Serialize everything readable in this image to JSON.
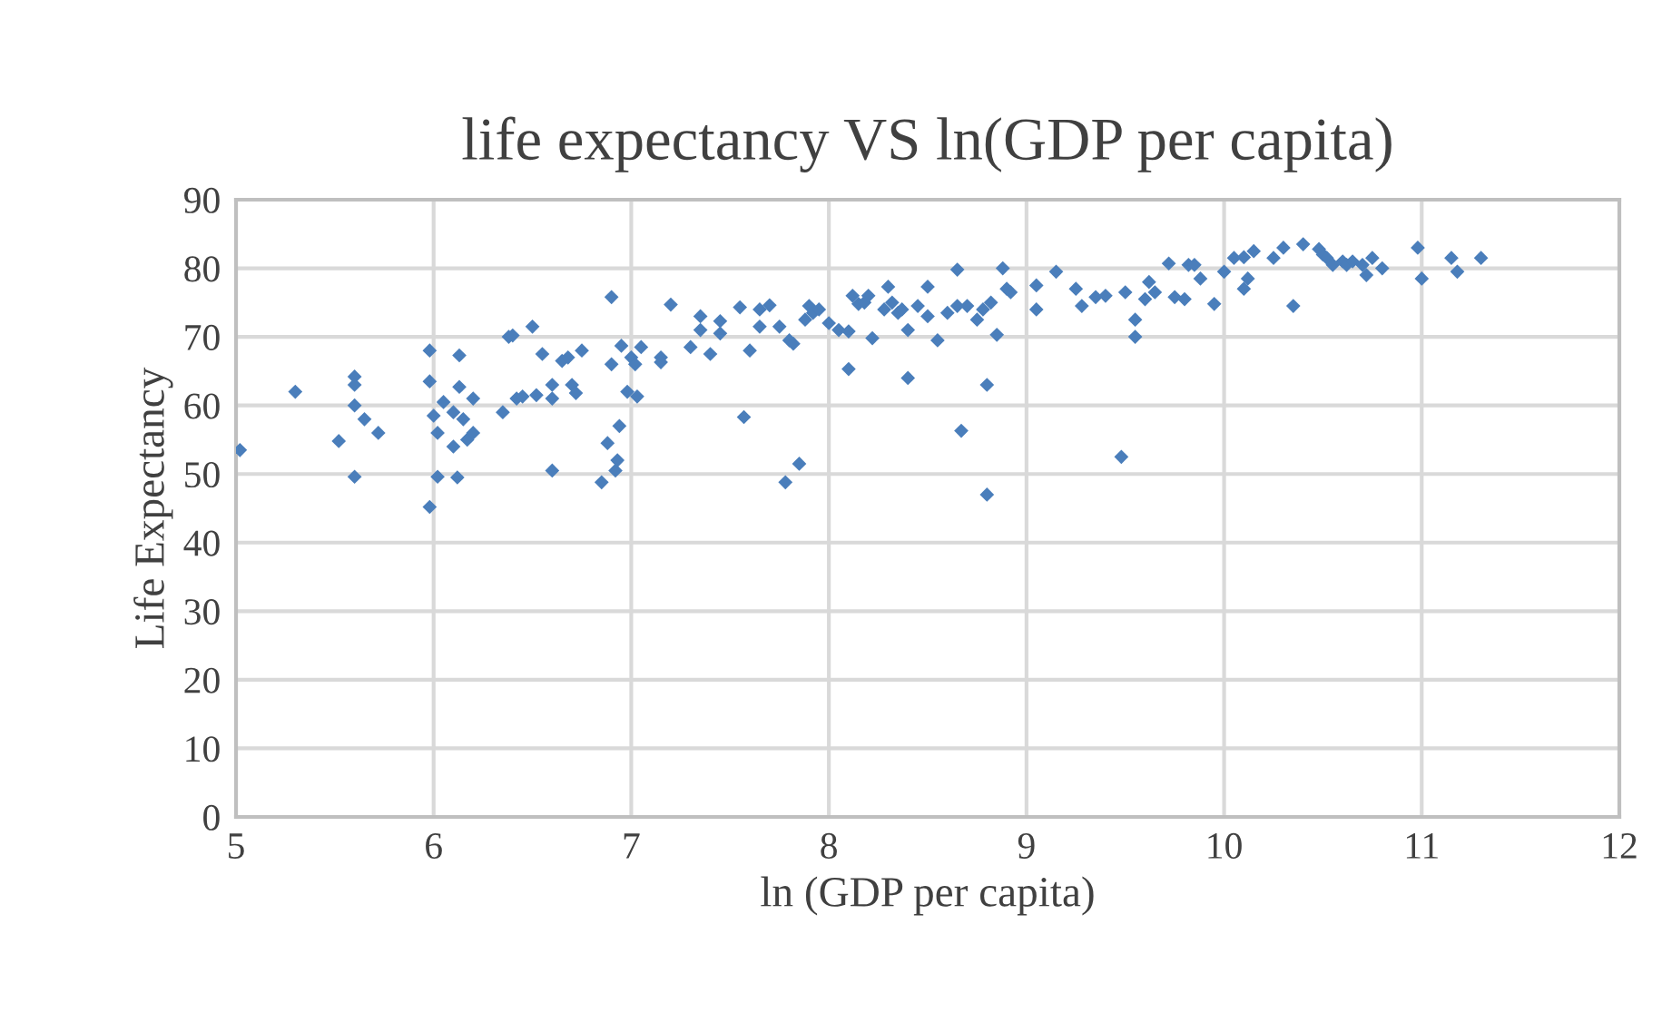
{
  "chart_data": {
    "type": "scatter",
    "title": "life expectancy VS ln(GDP per capita)",
    "xlabel": "ln (GDP per capita)",
    "ylabel": "Life Expectancy",
    "xlim": [
      5,
      12
    ],
    "xticks": [
      5,
      6,
      7,
      8,
      9,
      10,
      11,
      12
    ],
    "ylim": [
      0,
      90
    ],
    "yticks": [
      0,
      10,
      20,
      30,
      40,
      50,
      60,
      70,
      80,
      90
    ],
    "grid": true,
    "marker": "diamond",
    "series": [
      {
        "color": "#4a7ebb",
        "x": [
          5.02,
          5.3,
          5.52,
          5.6,
          5.6,
          5.6,
          5.6,
          5.65,
          5.72,
          5.98,
          5.98,
          5.98,
          6.0,
          6.02,
          6.02,
          6.05,
          6.1,
          6.1,
          6.12,
          6.13,
          6.13,
          6.15,
          6.17,
          6.2,
          6.2,
          6.35,
          6.38,
          6.4,
          6.42,
          6.45,
          6.5,
          6.52,
          6.55,
          6.6,
          6.6,
          6.6,
          6.65,
          6.68,
          6.7,
          6.72,
          6.75,
          6.85,
          6.88,
          6.9,
          6.9,
          6.92,
          6.93,
          6.94,
          6.95,
          6.98,
          7.0,
          7.02,
          7.03,
          7.05,
          7.15,
          7.15,
          7.2,
          7.3,
          7.35,
          7.35,
          7.4,
          7.45,
          7.45,
          7.55,
          7.57,
          7.6,
          7.65,
          7.65,
          7.7,
          7.75,
          7.78,
          7.8,
          7.82,
          7.85,
          7.88,
          7.9,
          7.92,
          7.95,
          8.0,
          8.05,
          8.1,
          8.1,
          8.12,
          8.15,
          8.18,
          8.2,
          8.22,
          8.28,
          8.3,
          8.32,
          8.35,
          8.37,
          8.4,
          8.4,
          8.45,
          8.5,
          8.5,
          8.55,
          8.6,
          8.65,
          8.65,
          8.67,
          8.7,
          8.75,
          8.78,
          8.8,
          8.8,
          8.82,
          8.85,
          8.88,
          8.9,
          8.92,
          9.05,
          9.05,
          9.15,
          9.25,
          9.28,
          9.35,
          9.4,
          9.48,
          9.5,
          9.55,
          9.55,
          9.6,
          9.62,
          9.65,
          9.72,
          9.75,
          9.8,
          9.82,
          9.85,
          9.88,
          9.95,
          10.0,
          10.05,
          10.1,
          10.1,
          10.12,
          10.15,
          10.25,
          10.3,
          10.35,
          10.4,
          10.48,
          10.5,
          10.52,
          10.55,
          10.6,
          10.62,
          10.65,
          10.7,
          10.72,
          10.75,
          10.8,
          10.98,
          11.0,
          11.15,
          11.18,
          11.3
        ],
        "values": [
          53.5,
          62,
          54.8,
          64.2,
          63,
          60,
          49.6,
          58,
          56,
          68,
          63.5,
          45.2,
          58.5,
          56,
          49.6,
          60.5,
          59,
          54,
          49.5,
          67.3,
          62.7,
          58,
          55,
          61,
          56,
          59,
          70,
          70.2,
          61,
          61.3,
          71.5,
          61.5,
          67.5,
          61,
          50.5,
          63,
          66.5,
          67,
          63,
          61.8,
          68,
          48.8,
          54.5,
          66,
          75.8,
          50.5,
          52,
          57,
          68.7,
          62,
          67,
          66,
          61.3,
          68.5,
          67,
          66.3,
          74.7,
          68.5,
          73,
          71,
          67.5,
          72.3,
          70.5,
          74.3,
          58.3,
          68,
          74,
          71.5,
          74.6,
          71.5,
          48.8,
          69.5,
          69,
          51.5,
          72.5,
          74.5,
          73.5,
          74,
          72,
          71,
          70.8,
          65.3,
          76,
          74.8,
          75,
          76,
          69.8,
          74,
          77.3,
          75,
          73.5,
          74,
          64,
          71,
          74.5,
          77.3,
          73,
          69.5,
          73.5,
          74.5,
          79.8,
          56.3,
          74.5,
          72.5,
          74,
          63,
          47,
          75,
          70.3,
          80,
          77,
          76.5,
          74,
          77.5,
          79.5,
          77,
          74.5,
          75.8,
          76,
          52.5,
          76.5,
          72.5,
          70,
          75.5,
          78,
          76.5,
          80.7,
          75.8,
          75.5,
          80.5,
          80.5,
          78.5,
          74.8,
          79.5,
          81.5,
          81.6,
          77,
          78.5,
          82.5,
          81.5,
          83,
          74.5,
          83.5,
          82.8,
          82,
          81.5,
          80.5,
          81,
          80.5,
          81,
          80.5,
          79,
          81.5,
          80,
          83,
          78.5,
          81.5,
          79.5,
          81.5
        ]
      }
    ]
  }
}
